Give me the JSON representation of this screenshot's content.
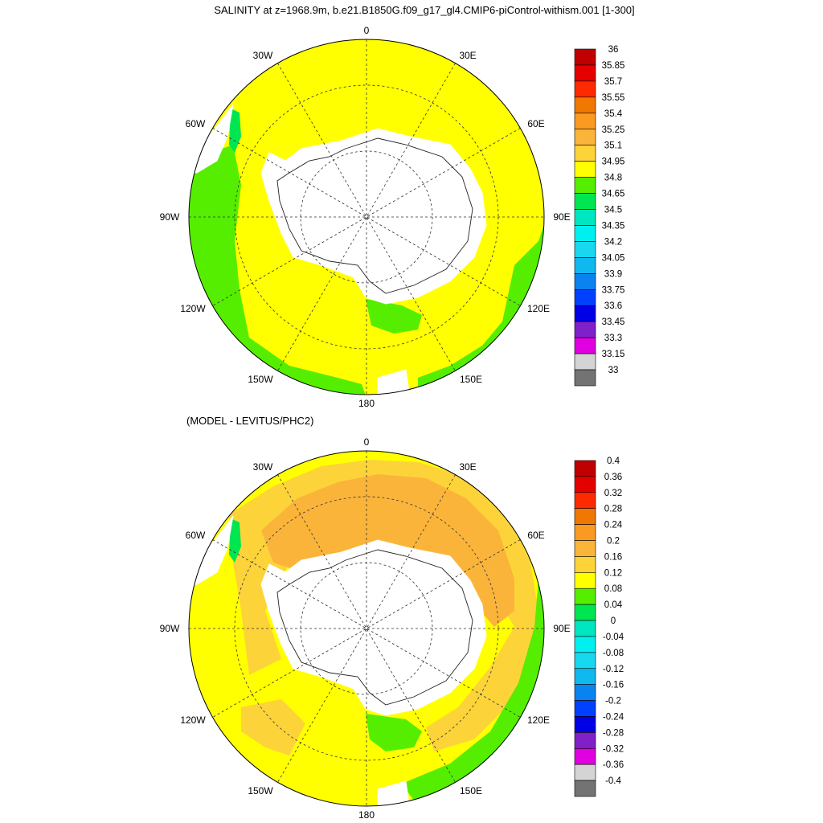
{
  "title": "SALINITY at z=1968.9m, b.e21.B1850G.f09_g17_gl4.CMIP6-piControl-withism.001 [1-300]",
  "subtitle": "(MODEL - LEVITUS/PHC2)",
  "longitude_labels": {
    "lon_0": "0",
    "lon_30e": "30E",
    "lon_60e": "60E",
    "lon_90e": "90E",
    "lon_120e": "120E",
    "lon_150e": "150E",
    "lon_180": "180",
    "lon_150w": "150W",
    "lon_120w": "120W",
    "lon_90w": "90W",
    "lon_60w": "60W",
    "lon_30w": "30W"
  },
  "colorbar_top": {
    "labels": [
      "36",
      "35.85",
      "35.7",
      "35.55",
      "35.4",
      "35.25",
      "35.1",
      "34.95",
      "34.8",
      "34.65",
      "34.5",
      "34.35",
      "34.2",
      "34.05",
      "33.9",
      "33.75",
      "33.6",
      "33.45",
      "33.3",
      "33.15",
      "33"
    ],
    "colors": [
      "#c00000",
      "#e50000",
      "#ff2a00",
      "#f07800",
      "#fa9a20",
      "#fbb43a",
      "#fdd33a",
      "#ffff00",
      "#55ee00",
      "#00e650",
      "#00e6c0",
      "#00f0f0",
      "#18d8f0",
      "#10b8f0",
      "#0a82f0",
      "#0040ff",
      "#0000e6",
      "#8020c8",
      "#e000e0",
      "#d4d4d4",
      "#737373"
    ]
  },
  "colorbar_bottom": {
    "labels": [
      "0.4",
      "0.36",
      "0.32",
      "0.28",
      "0.24",
      "0.2",
      "0.16",
      "0.12",
      "0.08",
      "0.04",
      "0",
      "-0.04",
      "-0.08",
      "-0.12",
      "-0.16",
      "-0.2",
      "-0.24",
      "-0.28",
      "-0.32",
      "-0.36",
      "-0.4"
    ],
    "colors": [
      "#c00000",
      "#e50000",
      "#ff2a00",
      "#f07800",
      "#fa9a20",
      "#fbb43a",
      "#fdd33a",
      "#ffff00",
      "#55ee00",
      "#00e650",
      "#00e6c0",
      "#00f0f0",
      "#18d8f0",
      "#10b8f0",
      "#0a82f0",
      "#0040ff",
      "#0000e6",
      "#8020c8",
      "#e000e0",
      "#d4d4d4",
      "#737373"
    ]
  },
  "field_colors": {
    "top_background": "#ffff00",
    "top_low": "#55ee00",
    "top_lower": "#00e650",
    "bottom_base": "#ffff00",
    "bottom_mid": "#fdd33a",
    "bottom_high": "#fbb43a",
    "bottom_low": "#55ee00",
    "bottom_lower": "#00e650",
    "land": "#ffffff"
  }
}
